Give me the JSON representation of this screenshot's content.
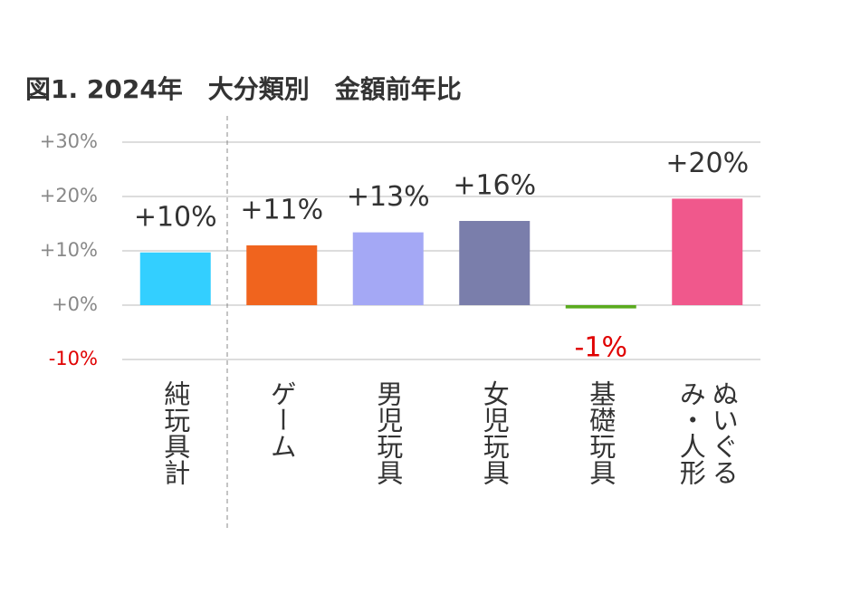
{
  "chart_data": {
    "type": "bar",
    "title": "図1. 2024年　大分類別　金額前年比",
    "categories": [
      "純玩具計",
      "ゲーム",
      "男児玩具",
      "女児玩具",
      "基礎玩具",
      "ぬいぐるみ・人形"
    ],
    "values": [
      9.7,
      11,
      13.4,
      15.5,
      -0.6,
      19.6
    ],
    "value_labels": [
      "+10%",
      "+11%",
      "+13%",
      "+16%",
      "-1%",
      "+20%"
    ],
    "colors": [
      "#33cfff",
      "#f0641e",
      "#a4a8f5",
      "#7a7eab",
      "#5aaa1e",
      "#f0588c"
    ],
    "ylim": [
      -10,
      30
    ],
    "yticks": [
      {
        "value": 30,
        "label": "+30%"
      },
      {
        "value": 20,
        "label": "+20%"
      },
      {
        "value": 10,
        "label": "+10%"
      },
      {
        "value": 0,
        "label": "+0%"
      },
      {
        "value": -10,
        "label": "-10%"
      }
    ],
    "grid": true
  }
}
